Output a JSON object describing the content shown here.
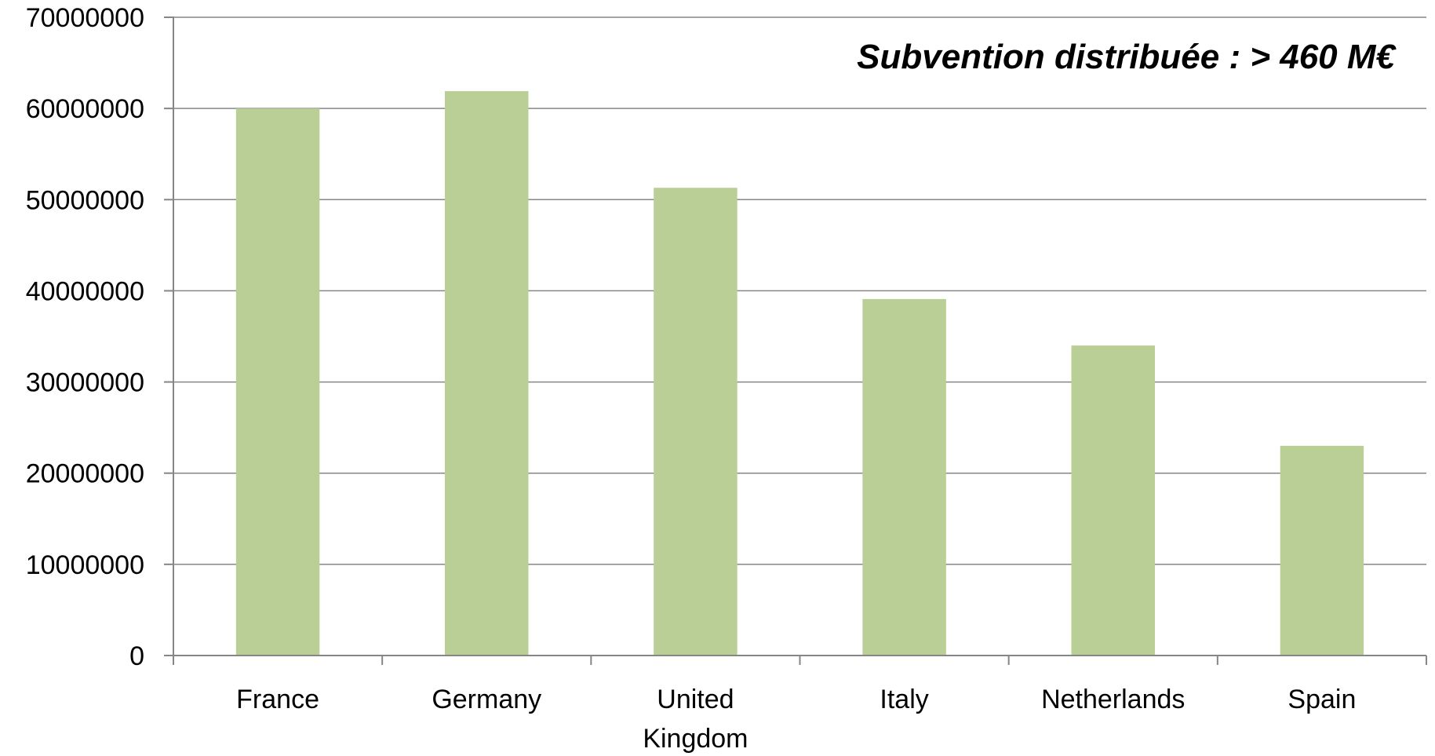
{
  "chart_data": {
    "type": "bar",
    "title": "",
    "xlabel": "",
    "ylabel": "",
    "annotation": "Subvention distribuée : > 460 M€",
    "categories": [
      [
        "France"
      ],
      [
        "Germany"
      ],
      [
        "United",
        "Kingdom"
      ],
      [
        "Italy"
      ],
      [
        "Netherlands"
      ],
      [
        "Spain"
      ]
    ],
    "values": [
      60000000,
      61900000,
      51300000,
      39100000,
      34000000,
      23000000
    ],
    "ylim": [
      0,
      70000000
    ],
    "yticks": [
      0,
      10000000,
      20000000,
      30000000,
      40000000,
      50000000,
      60000000,
      70000000
    ],
    "ytick_labels": [
      "0",
      "10000000",
      "20000000",
      "30000000",
      "40000000",
      "50000000",
      "60000000",
      "70000000"
    ],
    "grid": true,
    "legend": "none",
    "colors": {
      "bar": "#b9cf96",
      "grid": "#868686",
      "text": "#000000"
    }
  }
}
